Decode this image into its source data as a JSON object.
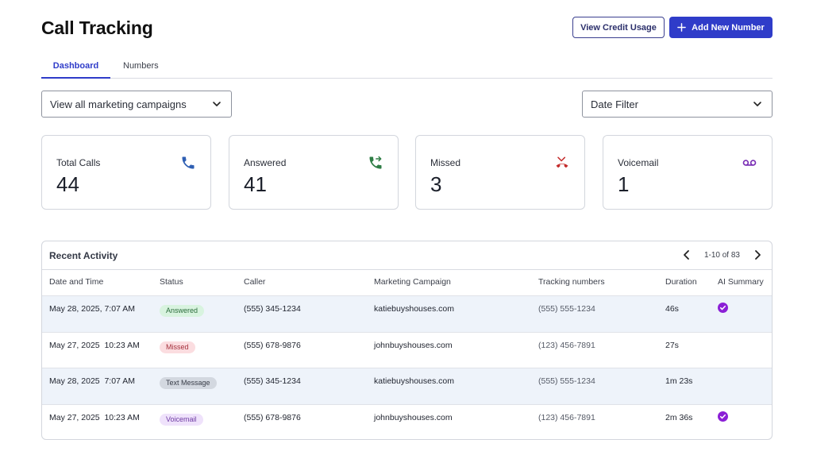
{
  "header": {
    "title": "Call Tracking",
    "view_credit_label": "View Credit Usage",
    "add_number_label": "Add New Number"
  },
  "tabs": [
    {
      "label": "Dashboard",
      "active": true
    },
    {
      "label": "Numbers",
      "active": false
    }
  ],
  "filters": {
    "campaign_select": "View all marketing campaigns",
    "date_select": "Date Filter"
  },
  "stats": [
    {
      "label": "Total Calls",
      "value": "44",
      "icon": "phone-icon",
      "color": "#2f5fb3"
    },
    {
      "label": "Answered",
      "value": "41",
      "icon": "phone-forward-icon",
      "color": "#2e7d45"
    },
    {
      "label": "Missed",
      "value": "3",
      "icon": "phone-missed-icon",
      "color": "#c42b2b"
    },
    {
      "label": "Voicemail",
      "value": "1",
      "icon": "voicemail-icon",
      "color": "#7a2fb5"
    }
  ],
  "activity": {
    "title": "Recent Activity",
    "pagination": "1-10 of 83",
    "columns": [
      "Date and Time",
      "Status",
      "Caller",
      "Marketing Campaign",
      "Tracking numbers",
      "Duration",
      "AI Summary"
    ],
    "rows": [
      {
        "datetime": "May 28, 2025, 7:07 AM",
        "status": "Answered",
        "caller": "(555) 345-1234",
        "campaign": "katiebuyshouses.com",
        "tracking": "(555) 555-1234",
        "duration": "46s",
        "ai_summary": true
      },
      {
        "datetime": "May 27, 2025  10:23 AM",
        "status": "Missed",
        "caller": "(555) 678-9876",
        "campaign": "johnbuyshouses.com",
        "tracking": "(123) 456-7891",
        "duration": "27s",
        "ai_summary": false
      },
      {
        "datetime": "May 28, 2025  7:07 AM",
        "status": "Text Message",
        "caller": "(555) 345-1234",
        "campaign": "katiebuyshouses.com",
        "tracking": "(555) 555-1234",
        "duration": "1m 23s",
        "ai_summary": false
      },
      {
        "datetime": "May 27, 2025  10:23 AM",
        "status": "Voicemail",
        "caller": "(555) 678-9876",
        "campaign": "johnbuyshouses.com",
        "tracking": "(123) 456-7891",
        "duration": "2m 36s",
        "ai_summary": true
      }
    ]
  },
  "colors": {
    "primary": "#2f3cc9",
    "ai_check": "#8b1fd6"
  }
}
